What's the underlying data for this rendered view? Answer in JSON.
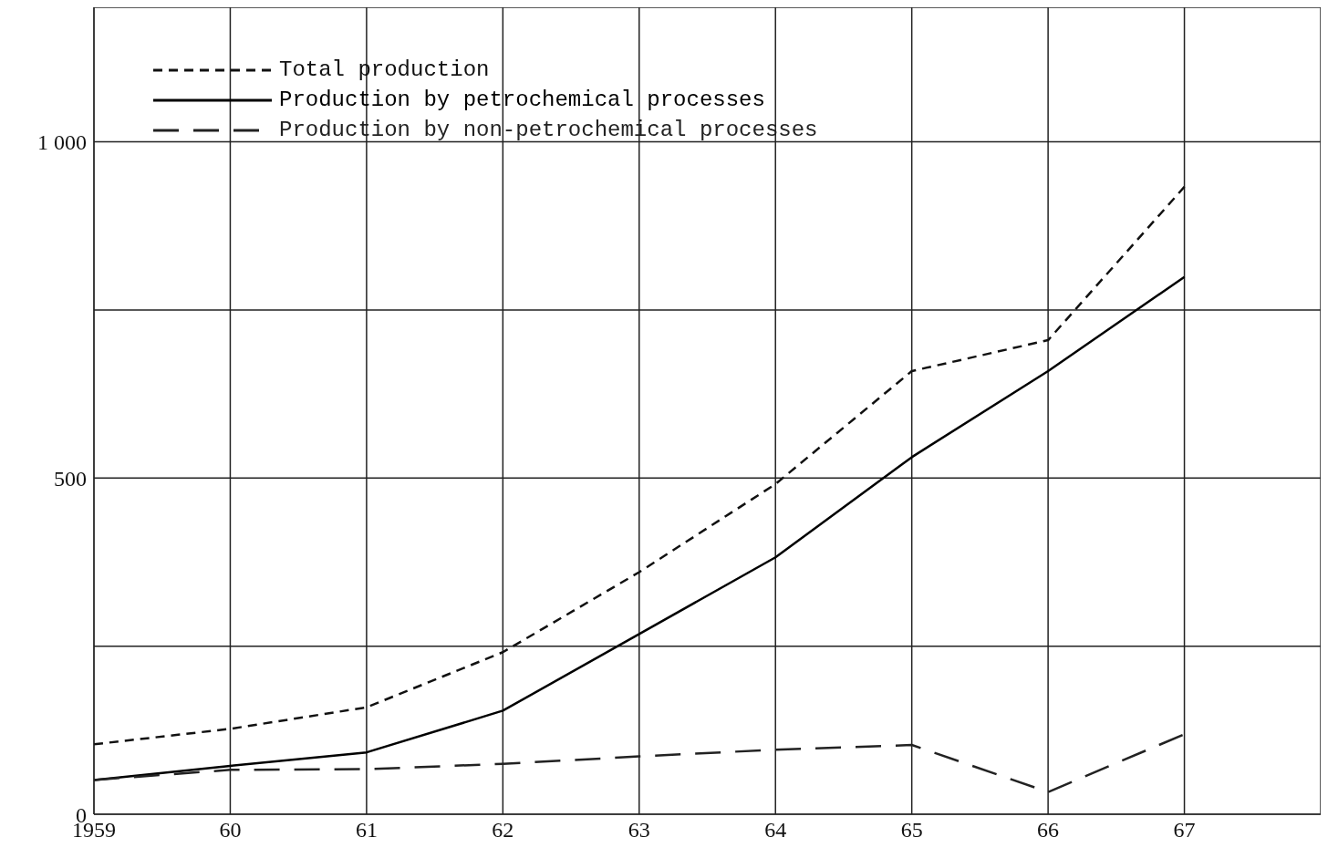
{
  "chart_data": {
    "type": "line",
    "x": [
      1959,
      1960,
      1961,
      1962,
      1963,
      1964,
      1965,
      1966,
      1967
    ],
    "series": [
      {
        "name": "Total production",
        "color": "#111111",
        "line_style": "dashed",
        "values": [
          104,
          127,
          159,
          241,
          360,
          491,
          659,
          705,
          933
        ]
      },
      {
        "name": "Production by petrochemical processes",
        "color": "#000000",
        "line_style": "solid",
        "values": [
          51,
          72,
          92,
          154,
          268,
          382,
          531,
          659,
          799
        ]
      },
      {
        "name": "Production by non-petrochemical processes",
        "color": "#222222",
        "line_style": "longdash",
        "values": [
          51,
          66,
          67,
          75,
          86,
          96,
          103,
          33,
          119
        ]
      }
    ],
    "xlim": [
      1959,
      1968
    ],
    "xticks": [
      {
        "value": 1959,
        "label": "1959"
      },
      {
        "value": 1960,
        "label": "60"
      },
      {
        "value": 1961,
        "label": "61"
      },
      {
        "value": 1962,
        "label": "62"
      },
      {
        "value": 1963,
        "label": "63"
      },
      {
        "value": 1964,
        "label": "64"
      },
      {
        "value": 1965,
        "label": "65"
      },
      {
        "value": 1966,
        "label": "66"
      },
      {
        "value": 1967,
        "label": "67"
      },
      {
        "value": 1968,
        "label": null
      }
    ],
    "ylim": [
      0,
      1200
    ],
    "yticks": [
      0,
      {
        "value": 250,
        "label": null
      },
      500,
      {
        "value": 750,
        "label": null
      },
      {
        "value": 1000,
        "label": "1 000"
      }
    ],
    "grid": true,
    "legend": "top left",
    "marker": "none"
  }
}
